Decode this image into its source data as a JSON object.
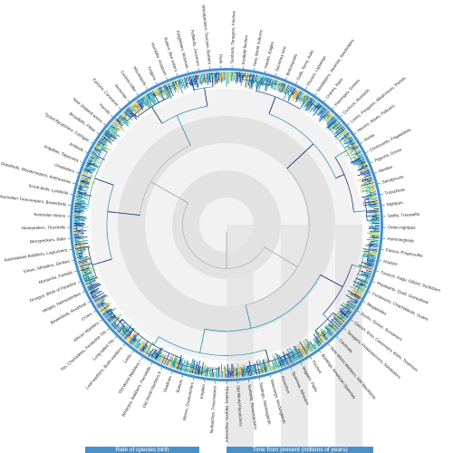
{
  "colors": {
    "background": "#ffffff",
    "time_band_light": "#f2f2f2",
    "time_band_dark": "#e2e2e2",
    "ring": "#4a90c8",
    "branch_low": "#0b1f6b",
    "branch_mid": "#1f8fb5",
    "branch_high": "#f0c419",
    "legend_bar": "#4a90c8"
  },
  "legend": {
    "rate": "Rate of species birth",
    "time": "Time from present (millions of years)"
  },
  "clades": [
    "Sunbirds, Tanagers, Finches",
    "Estrildid finches",
    "New World Vultures",
    "Hawks, Eagles",
    "Secretary bird",
    "Buttonquails",
    "Gulls, Terns, Auks",
    "Plovers, Lapwings",
    "Sandpipers, Jacanas, Seedsnipes",
    "Cranes, Rails",
    "Flamingos, Grebes",
    "Cuckoos, Bustards",
    "Loons, Penguins, Albatrosses, Petrels",
    "Herons, Ibises, Pelicans",
    "Storks",
    "Cormorants, Frigatebirds",
    "Pigeons, Doves",
    "Mesites",
    "Sandgrouse",
    "Tropicbirds",
    "Nightjars",
    "Swifts, Treeswifts",
    "Owlet-nightjars",
    "Hummingbirds",
    "Potoos, Frogmouths",
    "Hoatzin",
    "Turacos, Kagu, Oilbird, Sunbittern",
    "Pheasants, Quail, Guineafowl",
    "Curassows, Chachalacas, Guans",
    "Megapodes",
    "Ducks, Geese, Screamers",
    "Ostrich, Emu, Cassowary, Kiwis, Tinamous",
    "Tanagers, Flowerpiercers, Seedeaters",
    "Cardinals",
    "New World Warblers, NW Blackbirds",
    "Buntings, American Sparrows",
    "Finches",
    "Wagtails, Pipits",
    "Sparrows, Weavers",
    "Accentors",
    "Waxwings, Mockingbirds",
    "Starlings, Mockingbirds",
    "Sunbirds, Flowerpeckers",
    "Old World Flycatchers",
    "Thrushes, Dippers, Oxpeckers",
    "Nuthatches, Treecreepers",
    "Kinglets",
    "Wrens, Gnatcatchers",
    "Bulbuls",
    "Swallows",
    "Old World Warblers II",
    "Whiteyes, Babblers, Parrotbills",
    "Old World Warblers I",
    "Larks",
    "Leaf-warblers, Bush-warblers",
    "Long-tailed Tits",
    "Tits, Chickadees, Penduline Tits",
    "African Warblers",
    "Crows",
    "Bowerbirds, Rockfowl",
    "Vangas, Helmetshrikes",
    "Drongos, Birds of Paradise",
    "Monarchs, Fantails",
    "Vireos, Whistlers, Shrikes",
    "Australasian Babblers, Logrunners",
    "Berrypeckers, Batis",
    "Honeyeaters, Thornbills",
    "Australian Wrens",
    "Australian Treecreepers, Bowerbirds",
    "Scrub-birds, Lyrebirds",
    "Ovenbirds, Woodcreepers, Antthrushes",
    "Gnateaters",
    "Antpittas, Tapaculos",
    "Antbirds",
    "Tyrant-flycatchers, Cotingas",
    "Broadbills, Pittas",
    "New Zealand wrens",
    "Parrots",
    "Falcons, Caracaras",
    "Seriemas",
    "Cuckoo-roller",
    "Mousebirds",
    "Trogons",
    "Hornbills, Hoopoes",
    "Rollers, Bee-eaters",
    "Kingfishers, Motmots",
    "Puffbirds, Jacamars",
    "Woodpeckers, Toucans, Barbets",
    "Owls"
  ]
}
